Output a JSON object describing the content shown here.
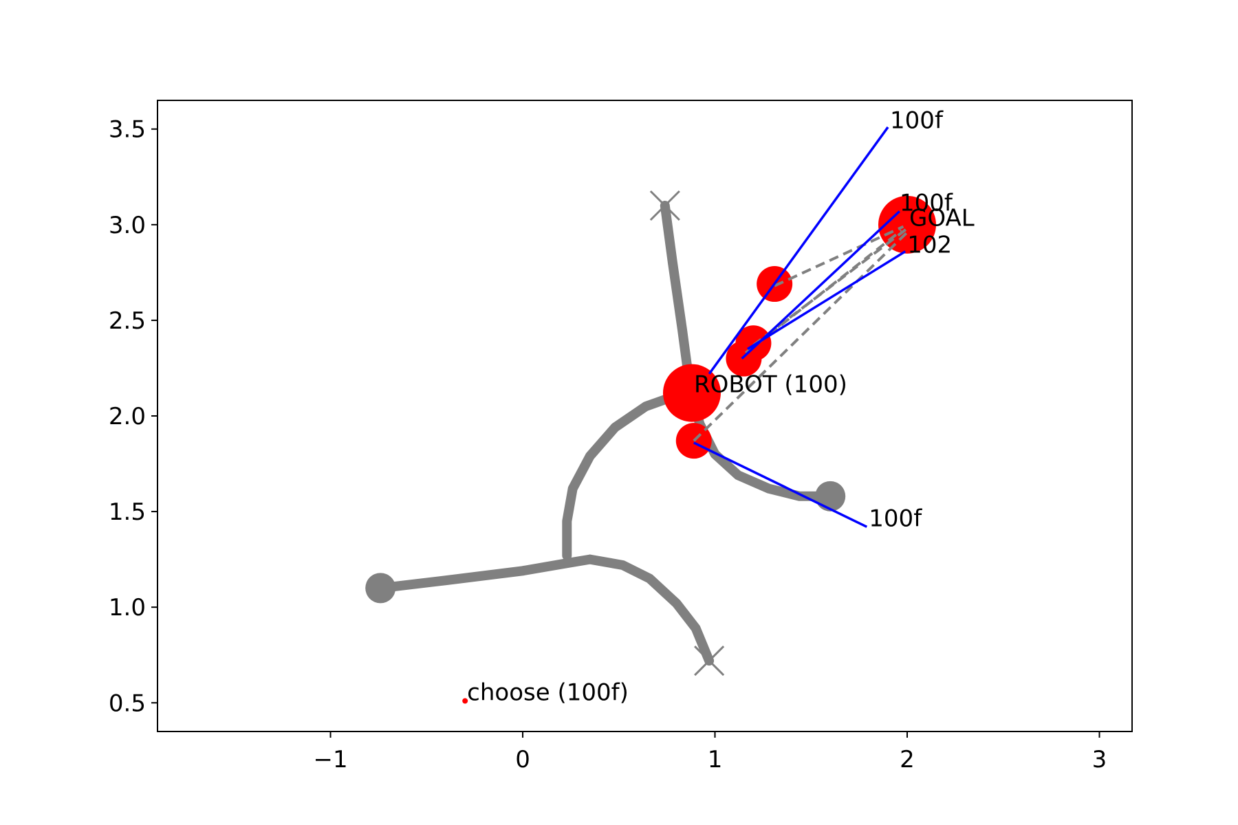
{
  "chart_data": {
    "type": "scatter",
    "title": "",
    "xlabel": "",
    "ylabel": "",
    "xlim": [
      -1.9,
      3.17
    ],
    "ylim": [
      0.35,
      3.65
    ],
    "grid": false,
    "xticks": [
      {
        "value": -1,
        "label": "−1"
      },
      {
        "value": 0,
        "label": "0"
      },
      {
        "value": 1,
        "label": "1"
      },
      {
        "value": 2,
        "label": "2"
      },
      {
        "value": 3,
        "label": "3"
      }
    ],
    "yticks": [
      {
        "value": 0.5,
        "label": "0.5"
      },
      {
        "value": 1.0,
        "label": "1.0"
      },
      {
        "value": 1.5,
        "label": "1.5"
      },
      {
        "value": 2.0,
        "label": "2.0"
      },
      {
        "value": 2.5,
        "label": "2.5"
      },
      {
        "value": 3.0,
        "label": "3.0"
      },
      {
        "value": 3.5,
        "label": "3.5"
      }
    ],
    "colors": {
      "path": "#808080",
      "node": "#ff0000",
      "ray": "#0000ff",
      "dashed": "#808080"
    },
    "paths": [
      [
        [
          -0.74,
          1.1
        ],
        [
          -0.4,
          1.14
        ],
        [
          0.0,
          1.19
        ],
        [
          0.23,
          1.23
        ],
        [
          0.35,
          1.25
        ]
      ],
      [
        [
          0.35,
          1.25
        ],
        [
          0.52,
          1.22
        ],
        [
          0.66,
          1.15
        ],
        [
          0.8,
          1.02
        ],
        [
          0.9,
          0.89
        ],
        [
          0.97,
          0.72
        ]
      ],
      [
        [
          0.23,
          1.27
        ],
        [
          0.23,
          1.45
        ],
        [
          0.26,
          1.62
        ],
        [
          0.35,
          1.79
        ],
        [
          0.48,
          1.94
        ],
        [
          0.64,
          2.05
        ],
        [
          0.78,
          2.1
        ],
        [
          0.89,
          2.12
        ]
      ],
      [
        [
          0.74,
          3.1
        ],
        [
          0.78,
          2.8
        ],
        [
          0.83,
          2.45
        ],
        [
          0.87,
          2.15
        ],
        [
          0.92,
          1.96
        ]
      ],
      [
        [
          0.92,
          1.96
        ],
        [
          1.0,
          1.8
        ],
        [
          1.12,
          1.69
        ],
        [
          1.28,
          1.62
        ],
        [
          1.44,
          1.58
        ],
        [
          1.6,
          1.58
        ]
      ]
    ],
    "path_endpoints": [
      {
        "x": -0.74,
        "y": 1.1,
        "marker": "dot"
      },
      {
        "x": 1.6,
        "y": 1.58,
        "marker": "dot"
      },
      {
        "x": 0.74,
        "y": 3.1,
        "marker": "x"
      },
      {
        "x": 0.97,
        "y": 0.72,
        "marker": "x"
      }
    ],
    "nodes": [
      {
        "x": 0.88,
        "y": 2.12,
        "size": "large"
      },
      {
        "x": 2.0,
        "y": 3.0,
        "size": "large"
      },
      {
        "x": 1.31,
        "y": 2.69,
        "size": "medium"
      },
      {
        "x": 1.2,
        "y": 2.38,
        "size": "medium"
      },
      {
        "x": 1.15,
        "y": 2.3,
        "size": "medium"
      },
      {
        "x": 0.89,
        "y": 1.87,
        "size": "medium"
      },
      {
        "x": -0.3,
        "y": 0.51,
        "size": "tiny"
      }
    ],
    "rays": [
      {
        "from": [
          0.97,
          2.22
        ],
        "to": [
          1.9,
          3.51
        ]
      },
      {
        "from": [
          1.14,
          2.3
        ],
        "to": [
          1.96,
          3.07
        ]
      },
      {
        "from": [
          1.17,
          2.35
        ],
        "to": [
          1.99,
          2.86
        ]
      },
      {
        "from": [
          0.89,
          1.86
        ],
        "to": [
          1.79,
          1.42
        ]
      }
    ],
    "dashed_links": [
      {
        "from": [
          1.31,
          2.68
        ],
        "to": [
          1.98,
          2.99
        ]
      },
      {
        "from": [
          1.16,
          2.33
        ],
        "to": [
          1.97,
          2.97
        ]
      },
      {
        "from": [
          1.2,
          2.37
        ],
        "to": [
          2.0,
          2.98
        ]
      },
      {
        "from": [
          0.89,
          1.87
        ],
        "to": [
          2.0,
          2.96
        ]
      }
    ],
    "annotations": [
      {
        "text": "100f",
        "x": 1.9,
        "y": 3.5
      },
      {
        "text": "100f",
        "x": 1.95,
        "y": 3.07
      },
      {
        "text": "GOAL",
        "x": 2.0,
        "y": 2.99
      },
      {
        "text": "102",
        "x": 1.99,
        "y": 2.85
      },
      {
        "text": "ROBOT (100)",
        "x": 0.88,
        "y": 2.12
      },
      {
        "text": "100f",
        "x": 1.79,
        "y": 1.42
      },
      {
        "text": "choose (100f)",
        "x": -0.3,
        "y": 0.51
      }
    ]
  }
}
